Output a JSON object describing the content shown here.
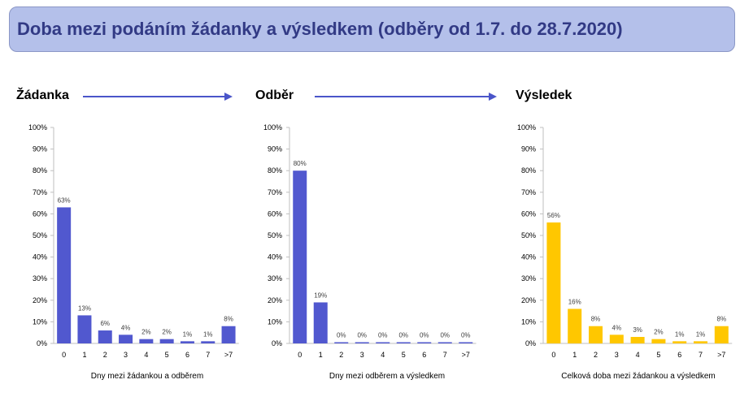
{
  "header": {
    "title": "Doba mezi podáním žádanky a výsledkem (odběry od 1.7. do 28.7.2020)"
  },
  "stages": {
    "stage1": "Žádanka",
    "stage2": "Odběr",
    "stage3": "Výsledek"
  },
  "colors": {
    "title_bg": "#b4c0ea",
    "title_text": "#323a85",
    "arrow": "#4a55c9",
    "bar_blue": "#5158cf",
    "bar_yellow": "#ffc700",
    "axis": "#bfbfbf"
  },
  "chart_data": [
    {
      "type": "bar",
      "categories": [
        "0",
        "1",
        "2",
        "3",
        "4",
        "5",
        "6",
        "7",
        ">7"
      ],
      "values": [
        63,
        13,
        6,
        4,
        2,
        2,
        1,
        1,
        8
      ],
      "data_labels": [
        "63%",
        "13%",
        "6%",
        "4%",
        "2%",
        "2%",
        "1%",
        "1%",
        "8%"
      ],
      "xlabel": "Dny mezi žádankou a odběrem",
      "ylim": [
        0,
        100
      ],
      "yticks": [
        "0%",
        "10%",
        "20%",
        "30%",
        "40%",
        "50%",
        "60%",
        "70%",
        "80%",
        "90%",
        "100%"
      ],
      "color": "#5158cf",
      "grid": false
    },
    {
      "type": "bar",
      "categories": [
        "0",
        "1",
        "2",
        "3",
        "4",
        "5",
        "6",
        "7",
        ">7"
      ],
      "values": [
        80,
        19,
        0,
        0,
        0,
        0,
        0,
        0,
        0
      ],
      "data_labels": [
        "80%",
        "19%",
        "0%",
        "0%",
        "0%",
        "0%",
        "0%",
        "0%",
        "0%"
      ],
      "xlabel": "Dny mezi odběrem a výsledkem",
      "ylim": [
        0,
        100
      ],
      "yticks": [
        "0%",
        "10%",
        "20%",
        "30%",
        "40%",
        "50%",
        "60%",
        "70%",
        "80%",
        "90%",
        "100%"
      ],
      "color": "#5158cf",
      "grid": false
    },
    {
      "type": "bar",
      "categories": [
        "0",
        "1",
        "2",
        "3",
        "4",
        "5",
        "6",
        "7",
        ">7"
      ],
      "values": [
        56,
        16,
        8,
        4,
        3,
        2,
        1,
        1,
        8
      ],
      "data_labels": [
        "56%",
        "16%",
        "8%",
        "4%",
        "3%",
        "2%",
        "1%",
        "1%",
        "8%"
      ],
      "xlabel": "Celková doba mezi žádankou a výsledkem",
      "ylim": [
        0,
        100
      ],
      "yticks": [
        "0%",
        "10%",
        "20%",
        "30%",
        "40%",
        "50%",
        "60%",
        "70%",
        "80%",
        "90%",
        "100%"
      ],
      "color": "#ffc700",
      "grid": false
    }
  ]
}
